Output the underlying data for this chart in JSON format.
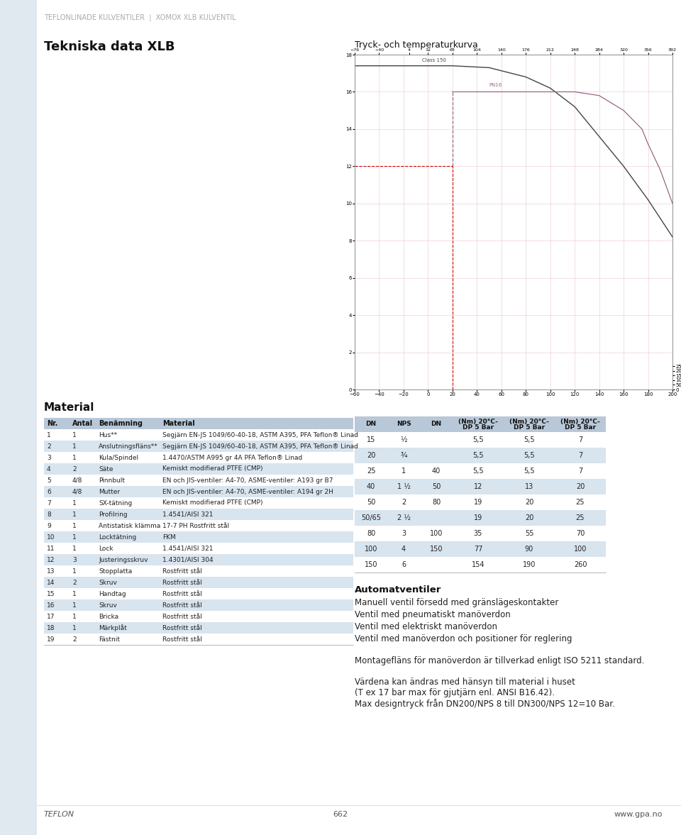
{
  "page_bg": "#ffffff",
  "sidebar_color": "#e0e8f0",
  "header_text": "TEFLONLINADE KULVENTILER  |  XOMOX XLB KULVENTIL",
  "header_color": "#aaaaaa",
  "title": "Tekniska data XLB",
  "chart_title": "Tryck- och temperaturkurva",
  "material_title": "Material",
  "material_headers": [
    "Nr.",
    "Antal",
    "Benämning",
    "Material"
  ],
  "material_rows": [
    [
      "1",
      "1",
      "Hus**",
      "Segjärn EN-JS 1049/60-40-18, ASTM A395, PFA Teflon® Linad"
    ],
    [
      "2",
      "1",
      "Anslutningsfläns**",
      "Segjärn EN-JS 1049/60-40-18, ASTM A395, PFA Teflon® Linad"
    ],
    [
      "3",
      "1",
      "Kula/Spindel",
      "1.4470/ASTM A995 gr 4A PFA Teflon® Linad"
    ],
    [
      "4",
      "2",
      "Säte",
      "Kemiskt modifierad PTFE (CMP)"
    ],
    [
      "5",
      "4/8",
      "Pinnbult",
      "EN och JIS-ventiler: A4-70, ASME-ventiler: A193 gr B7"
    ],
    [
      "6",
      "4/8",
      "Mutter",
      "EN och JIS-ventiler: A4-70, ASME-ventiler: A194 gr 2H"
    ],
    [
      "7",
      "1",
      "SX-tätning",
      "Kemiskt modifierad PTFE (CMP)"
    ],
    [
      "8",
      "1",
      "Profilring",
      "1.4541/AISI 321"
    ],
    [
      "9",
      "1",
      "Antistatisk klämma",
      "17-7 PH Rostfritt stål"
    ],
    [
      "10",
      "1",
      "Locktätning",
      "FKM"
    ],
    [
      "11",
      "1",
      "Lock",
      "1.4541/AISI 321"
    ],
    [
      "12",
      "3",
      "Justeringsskruv",
      "1.4301/AISI 304"
    ],
    [
      "13",
      "1",
      "Stopplatta",
      "Rostfritt stål"
    ],
    [
      "14",
      "2",
      "Skruv",
      "Rostfritt stål"
    ],
    [
      "15",
      "1",
      "Handtag",
      "Rostfritt stål"
    ],
    [
      "16",
      "1",
      "Skruv",
      "Rostfritt stål"
    ],
    [
      "17",
      "1",
      "Bricka",
      "Rostfritt stål"
    ],
    [
      "18",
      "1",
      "Märkplåt",
      "Rostfritt stål"
    ],
    [
      "19",
      "2",
      "Fästnit",
      "Rostfritt stål"
    ]
  ],
  "data_headers": [
    "DN",
    "NPS",
    "DN",
    "(Nm) 20°C-\nDP 5 Bar",
    "(Nm) 20°C-\nDP 5 Bar",
    "(Nm) 20°C-\nDP 5 Bar"
  ],
  "data_rows": [
    [
      "15",
      "½",
      "",
      "5,5",
      "5,5",
      "7"
    ],
    [
      "20",
      "¾",
      "",
      "5,5",
      "5,5",
      "7"
    ],
    [
      "25",
      "1",
      "40",
      "5,5",
      "5,5",
      "7"
    ],
    [
      "40",
      "1 ½",
      "50",
      "12",
      "13",
      "20"
    ],
    [
      "50",
      "2",
      "80",
      "19",
      "20",
      "25"
    ],
    [
      "50/65",
      "2 ½",
      "",
      "19",
      "20",
      "25"
    ],
    [
      "80",
      "3",
      "100",
      "35",
      "55",
      "70"
    ],
    [
      "100",
      "4",
      "150",
      "77",
      "90",
      "100"
    ],
    [
      "150",
      "6",
      "",
      "154",
      "190",
      "260"
    ]
  ],
  "auto_title": "Automatventiler",
  "auto_items": [
    "Manuell ventil försedd med gränslägeskontakter",
    "Ventil med pneumatiskt manöverdon",
    "Ventil med elektriskt manöverdon",
    "Ventil med manöverdon och positioner för reglering"
  ],
  "note1": "Montagefläns för manöverdon är tillverkad enligt ISO 5211 standard.",
  "note2_lines": [
    "Värdena kan ändras med hänsyn till material i huset",
    "(T ex 17 bar max för gjutjärn enl. ANSI B16.42).",
    "Max designtryck från DN200/NPS 8 till DN300/NPS 12=10 Bar."
  ],
  "footer_left": "TEFLON",
  "footer_center": "662",
  "footer_right": "www.gpa.no",
  "header_bg": "#b8c8d8",
  "row_alt_bg": "#d8e4ee",
  "row_bg": "#ffffff",
  "chart_grid_color": "#e8c8c8",
  "class150_color": "#444444",
  "pn16_color": "#996688",
  "dash_color": "#cc0000"
}
